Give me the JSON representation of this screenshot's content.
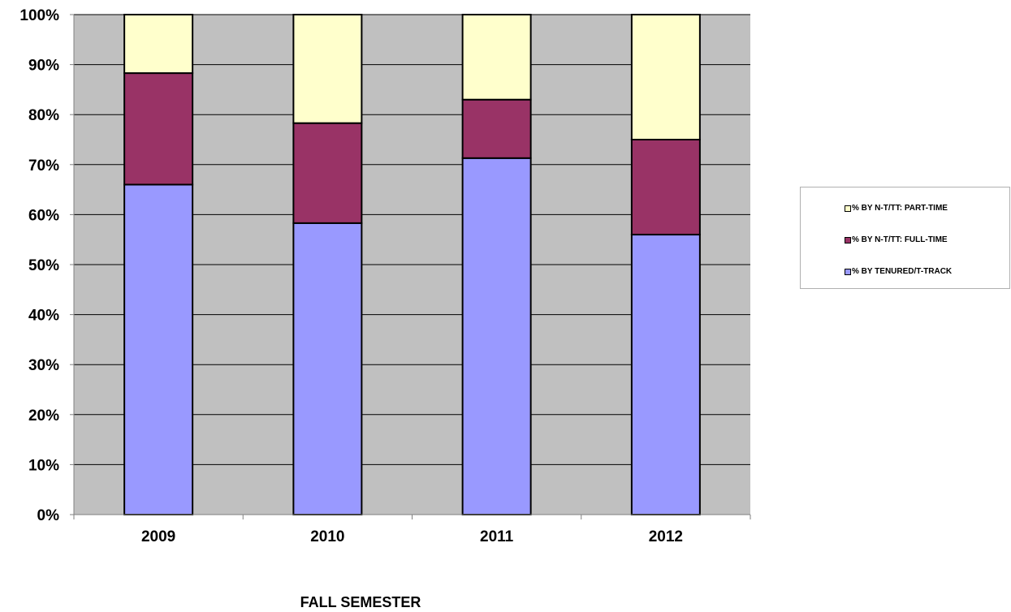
{
  "chart_data": {
    "type": "bar",
    "stacked": true,
    "categories": [
      "2009",
      "2010",
      "2011",
      "2012"
    ],
    "series": [
      {
        "name": "% BY TENURED/T-TRACK",
        "color": "#9999ff",
        "values": [
          66,
          58.3,
          71.3,
          56
        ]
      },
      {
        "name": "% BY N-T/TT: FULL-TIME",
        "color": "#993366",
        "values": [
          22.3,
          20,
          11.7,
          19
        ]
      },
      {
        "name": "% BY N-T/TT: PART-TIME",
        "color": "#ffffcc",
        "values": [
          11.7,
          21.7,
          17,
          25
        ]
      }
    ],
    "yticks": [
      "0%",
      "10%",
      "20%",
      "30%",
      "40%",
      "50%",
      "60%",
      "70%",
      "80%",
      "90%",
      "100%"
    ],
    "ylim": [
      0,
      100
    ],
    "xlabel": "FALL SEMESTER",
    "ylabel": "",
    "grid": true,
    "plot_background": "#c0c0c0",
    "legend_position": "right"
  }
}
